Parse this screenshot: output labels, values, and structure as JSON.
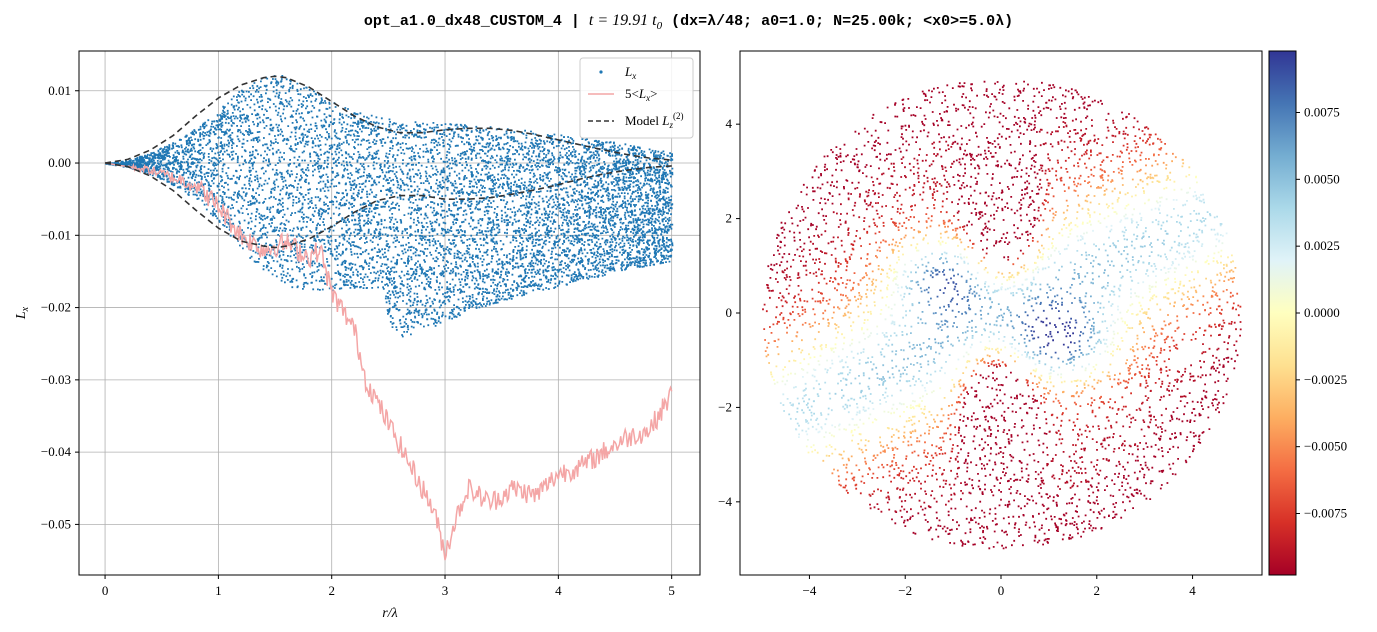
{
  "title": {
    "prefix": "opt_a1.0_dx48_CUSTOM_4 | ",
    "time": "t = 19.91 t",
    "time_sub": "0",
    "suffix": " (dx=λ/48; a0=1.0; N=25.00k; <x0>=5.0λ)"
  },
  "chart_data": [
    {
      "type": "scatter",
      "xlabel": "r/λ",
      "ylabel": "L_x",
      "xlim": [
        -0.23,
        5.25
      ],
      "ylim": [
        -0.057,
        0.0155
      ],
      "xticks": [
        0,
        1,
        2,
        3,
        4,
        5
      ],
      "xtick_labels": [
        "0",
        "1",
        "2",
        "3",
        "4",
        "5"
      ],
      "yticks": [
        0.01,
        0.0,
        -0.01,
        -0.02,
        -0.03,
        -0.04,
        -0.05
      ],
      "ytick_labels": [
        "0.01",
        "0.00",
        "−0.01",
        "−0.02",
        "−0.03",
        "−0.04",
        "−0.05"
      ],
      "grid": true,
      "legend_position": "top-right",
      "legend": [
        {
          "label": "L_x",
          "kind": "points",
          "color": "#1f77b4"
        },
        {
          "label": "5<L_x>",
          "kind": "line",
          "color": "#f4a6a6"
        },
        {
          "label": "Model L_z^(2)",
          "kind": "dashed",
          "color": "#333333"
        }
      ],
      "series": [
        {
          "name": "L_x",
          "kind": "scatter-band",
          "color": "#1f77b4",
          "x": [
            0.0,
            0.2,
            0.4,
            0.6,
            0.8,
            1.0,
            1.2,
            1.4,
            1.5,
            1.6,
            1.8,
            2.0,
            2.2,
            2.4,
            2.45,
            2.5,
            2.6,
            2.8,
            3.0,
            3.2,
            3.5,
            4.0,
            4.5,
            5.0
          ],
          "upper": [
            0.0,
            0.0005,
            0.0015,
            0.003,
            0.005,
            0.0075,
            0.0105,
            0.012,
            0.0125,
            0.012,
            0.0105,
            0.0085,
            0.0072,
            0.0065,
            0.0064,
            0.0062,
            0.006,
            0.0058,
            0.0056,
            0.0054,
            0.005,
            0.004,
            0.003,
            0.0015
          ],
          "lower": [
            0.0,
            -0.0005,
            -0.0015,
            -0.003,
            -0.005,
            -0.008,
            -0.012,
            -0.015,
            -0.016,
            -0.017,
            -0.0175,
            -0.0175,
            -0.0172,
            -0.0172,
            -0.0175,
            -0.022,
            -0.0243,
            -0.023,
            -0.022,
            -0.0205,
            -0.019,
            -0.017,
            -0.015,
            -0.0135
          ]
        },
        {
          "name": "5<L_x>",
          "kind": "line",
          "color": "#f4a6a6",
          "x": [
            0.0,
            0.2,
            0.4,
            0.6,
            0.8,
            1.0,
            1.2,
            1.4,
            1.6,
            1.8,
            1.9,
            2.0,
            2.2,
            2.3,
            2.5,
            2.7,
            2.9,
            3.0,
            3.1,
            3.2,
            3.4,
            3.6,
            3.8,
            4.0,
            4.2,
            4.4,
            4.6,
            4.8,
            5.0
          ],
          "y": [
            0.0,
            -0.0005,
            -0.001,
            -0.002,
            -0.003,
            -0.006,
            -0.01,
            -0.012,
            -0.011,
            -0.013,
            -0.012,
            -0.018,
            -0.023,
            -0.03,
            -0.036,
            -0.042,
            -0.048,
            -0.054,
            -0.049,
            -0.045,
            -0.047,
            -0.045,
            -0.046,
            -0.043,
            -0.042,
            -0.04,
            -0.038,
            -0.037,
            -0.032
          ]
        },
        {
          "name": "Model L_z^(2) upper",
          "kind": "dashed",
          "color": "#333333",
          "x": [
            0.0,
            0.2,
            0.4,
            0.6,
            0.8,
            1.0,
            1.2,
            1.4,
            1.5,
            1.6,
            1.8,
            2.0,
            2.2,
            2.4,
            2.6,
            2.8,
            3.0,
            3.2,
            3.4,
            3.6,
            3.8,
            4.0,
            4.2,
            4.4,
            4.6,
            4.8,
            5.0
          ],
          "y": [
            0.0,
            0.0005,
            0.0018,
            0.0038,
            0.0065,
            0.009,
            0.0108,
            0.0118,
            0.012,
            0.0118,
            0.0105,
            0.0085,
            0.0065,
            0.005,
            0.0042,
            0.0042,
            0.0046,
            0.0048,
            0.0048,
            0.0045,
            0.0039,
            0.0032,
            0.0025,
            0.0018,
            0.0012,
            0.0007,
            0.0004
          ]
        },
        {
          "name": "Model L_z^(2) lower",
          "kind": "dashed",
          "color": "#333333",
          "x": [
            0.0,
            0.2,
            0.4,
            0.6,
            0.8,
            1.0,
            1.2,
            1.4,
            1.5,
            1.6,
            1.8,
            2.0,
            2.2,
            2.4,
            2.6,
            2.8,
            3.0,
            3.2,
            3.4,
            3.6,
            3.8,
            4.0,
            4.2,
            4.4,
            4.6,
            4.8,
            5.0
          ],
          "y": [
            0.0,
            -0.0005,
            -0.0018,
            -0.0038,
            -0.0065,
            -0.009,
            -0.0108,
            -0.0115,
            -0.0117,
            -0.0115,
            -0.0105,
            -0.0088,
            -0.0068,
            -0.0052,
            -0.0045,
            -0.0045,
            -0.005,
            -0.005,
            -0.0048,
            -0.0043,
            -0.0037,
            -0.003,
            -0.0022,
            -0.0015,
            -0.001,
            -0.0006,
            -0.0004
          ]
        }
      ]
    },
    {
      "type": "scatter",
      "xlabel": "",
      "ylabel": "",
      "xlim": [
        -5.45,
        5.45
      ],
      "ylim": [
        -5.55,
        5.55
      ],
      "xticks": [
        -4,
        -2,
        0,
        2,
        4
      ],
      "xtick_labels": [
        "−4",
        "−2",
        "0",
        "2",
        "4"
      ],
      "yticks": [
        4,
        2,
        0,
        -2,
        -4
      ],
      "ytick_labels": [
        "4",
        "2",
        "0",
        "−2",
        "−4"
      ],
      "grid": false,
      "description_hidden": true,
      "disk_radius": 5.0,
      "colormap": "RdYlBu",
      "colorbar": {
        "range": [
          -0.0098,
          0.0098
        ],
        "ticks": [
          0.0075,
          0.005,
          0.0025,
          0.0,
          -0.0025,
          -0.005,
          -0.0075
        ],
        "tick_labels": [
          "0.0075",
          "0.0050",
          "0.0025",
          "0.0000",
          "−0.0025",
          "−0.0050",
          "−0.0075"
        ]
      }
    }
  ]
}
